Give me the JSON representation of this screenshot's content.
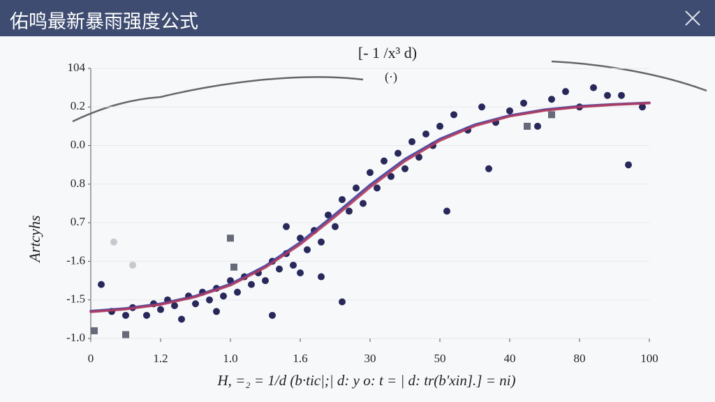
{
  "window": {
    "title": "佑鸣最新暴雨强度公式"
  },
  "chart_data": {
    "type": "scatter",
    "title": "[- 1 /x³ d)",
    "subtitle": "(·)",
    "x_label": "H, =₂ = 1/d (b·tic|;| d: y o: t = | d: tr(b'xin].] = ni)",
    "y_label": "Artcyhs",
    "xlim": [
      0,
      8
    ],
    "ylim": [
      0,
      7
    ],
    "grid": true,
    "xticks": [
      0,
      {
        "value": 1,
        "label": "1.2"
      },
      {
        "value": 2,
        "label": "1.0"
      },
      {
        "value": 3,
        "label": "1.6"
      },
      {
        "value": 4,
        "label": "30"
      },
      {
        "value": 5,
        "label": "50"
      },
      {
        "value": 6,
        "label": "40"
      },
      {
        "value": 7,
        "label": "80"
      },
      {
        "value": 8,
        "label": "100"
      }
    ],
    "yticks": [
      {
        "value": 0,
        "label": "-1.0"
      },
      {
        "value": 1,
        "label": "-1.5"
      },
      {
        "value": 2,
        "label": "-1.6"
      },
      {
        "value": 3,
        "label": "0.7"
      },
      {
        "value": 4,
        "label": "0.8"
      },
      {
        "value": 5,
        "label": "0.0"
      },
      {
        "value": 6,
        "label": "0.2"
      },
      {
        "value": 7,
        "label": "104"
      }
    ],
    "series": [
      {
        "mode": "markers",
        "marker": "circle",
        "color": "#1c1c52",
        "x": [
          0.15,
          0.3,
          0.5,
          0.6,
          0.8,
          0.9,
          1.0,
          1.1,
          1.2,
          1.3,
          1.4,
          1.5,
          1.6,
          1.7,
          1.8,
          1.9,
          2.0,
          2.1,
          2.2,
          2.3,
          2.4,
          2.5,
          2.6,
          2.6,
          2.7,
          2.8,
          2.9,
          3.0,
          3.1,
          3.2,
          3.3,
          3.3,
          3.4,
          3.5,
          3.6,
          3.7,
          3.8,
          3.9,
          4.0,
          4.1,
          4.2,
          4.3,
          4.4,
          4.5,
          4.6,
          4.7,
          4.8,
          4.9,
          5.0,
          5.1,
          5.2,
          5.4,
          5.6,
          5.7,
          5.8,
          6.0,
          6.2,
          6.4,
          6.6,
          6.8,
          7.0,
          7.2,
          7.4,
          7.6,
          7.7,
          7.9,
          3.6,
          3.0,
          1.8,
          2.8
        ],
        "values": [
          1.4,
          0.7,
          0.6,
          0.8,
          0.6,
          0.9,
          0.75,
          1.0,
          0.85,
          0.5,
          1.1,
          0.9,
          1.2,
          1.0,
          1.3,
          1.1,
          1.5,
          1.2,
          1.6,
          1.4,
          1.7,
          1.5,
          0.6,
          2.0,
          1.8,
          2.2,
          1.9,
          2.6,
          2.3,
          2.8,
          2.5,
          1.6,
          3.2,
          2.9,
          3.6,
          3.3,
          3.9,
          3.5,
          4.3,
          3.9,
          4.6,
          4.2,
          4.8,
          4.4,
          5.1,
          4.7,
          5.3,
          5.0,
          5.5,
          3.3,
          5.8,
          5.4,
          6.0,
          4.4,
          5.6,
          5.9,
          6.1,
          5.5,
          6.2,
          6.4,
          6.0,
          6.5,
          6.3,
          6.3,
          4.5,
          6.0,
          0.95,
          1.7,
          0.7,
          2.9
        ]
      },
      {
        "mode": "markers",
        "marker": "square",
        "color": "#666a78",
        "x": [
          0.05,
          0.5,
          2.0,
          2.05,
          6.25,
          6.6
        ],
        "values": [
          0.2,
          0.1,
          2.6,
          1.85,
          5.5,
          5.8
        ]
      },
      {
        "mode": "markers",
        "marker": "circle",
        "color": "#c4c6cc",
        "x": [
          0.33,
          0.6
        ],
        "values": [
          2.5,
          1.9
        ]
      },
      {
        "mode": "line",
        "color": "#3a3f9e",
        "x": [
          0,
          0.5,
          1,
          1.5,
          2,
          2.5,
          3,
          3.5,
          4,
          4.5,
          5,
          5.5,
          6,
          6.5,
          7,
          7.5,
          8
        ],
        "values": [
          0.71,
          0.78,
          0.9,
          1.1,
          1.41,
          1.88,
          2.49,
          3.22,
          3.98,
          4.65,
          5.17,
          5.54,
          5.78,
          5.93,
          6.02,
          6.07,
          6.11
        ]
      },
      {
        "mode": "line",
        "color": "#b03a5e",
        "x": [
          0,
          0.5,
          1,
          1.5,
          2,
          2.5,
          3,
          3.5,
          4,
          4.5,
          5,
          5.5,
          6,
          6.5,
          7,
          7.5,
          8
        ],
        "values": [
          0.69,
          0.76,
          0.88,
          1.08,
          1.38,
          1.84,
          2.44,
          3.16,
          3.92,
          4.6,
          5.13,
          5.51,
          5.76,
          5.91,
          6.0,
          6.06,
          6.1
        ]
      }
    ]
  }
}
